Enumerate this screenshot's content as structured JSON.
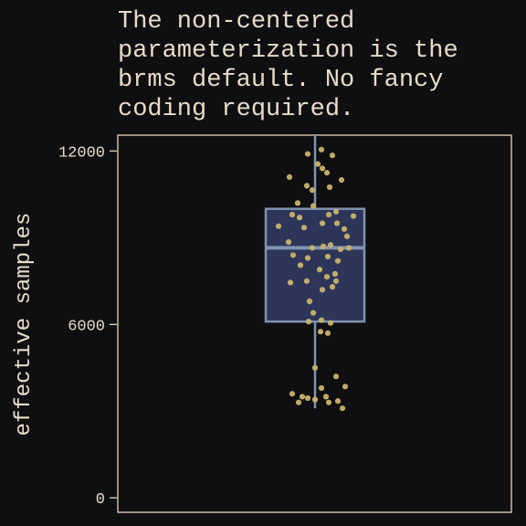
{
  "chart_data": {
    "type": "boxplot",
    "title_lines": [
      "The non-centered",
      "parameterization is the",
      "brms default. No fancy",
      "coding required."
    ],
    "xlabel": "",
    "ylabel": "effective samples",
    "ylim": [
      -500,
      12550
    ],
    "yticks": [
      0,
      6000,
      12000
    ],
    "ytick_labels": [
      "0",
      "6000",
      "12000"
    ],
    "box": {
      "q1": 6100,
      "median": 8650,
      "q3": 10000,
      "whisker_low": 3100,
      "whisker_high": 12550
    },
    "points": [
      [
        0.82,
        11900
      ],
      [
        0.93,
        11550
      ],
      [
        0.97,
        12050
      ],
      [
        1.09,
        11850
      ],
      [
        0.98,
        11400
      ],
      [
        1.03,
        11250
      ],
      [
        0.62,
        11100
      ],
      [
        0.81,
        10800
      ],
      [
        0.87,
        10650
      ],
      [
        1.06,
        10750
      ],
      [
        1.19,
        11000
      ],
      [
        0.71,
        10200
      ],
      [
        0.88,
        10100
      ],
      [
        1.05,
        9800
      ],
      [
        1.13,
        9900
      ],
      [
        1.32,
        9750
      ],
      [
        0.65,
        9800
      ],
      [
        0.73,
        9700
      ],
      [
        0.98,
        9500
      ],
      [
        0.5,
        9400
      ],
      [
        0.78,
        9350
      ],
      [
        1.14,
        9500
      ],
      [
        1.22,
        9300
      ],
      [
        1.25,
        9050
      ],
      [
        0.61,
        8850
      ],
      [
        0.87,
        8650
      ],
      [
        0.99,
        8700
      ],
      [
        1.07,
        8750
      ],
      [
        1.18,
        8600
      ],
      [
        1.27,
        8650
      ],
      [
        0.66,
        8400
      ],
      [
        0.82,
        8300
      ],
      [
        1.04,
        8350
      ],
      [
        1.15,
        8200
      ],
      [
        0.74,
        8050
      ],
      [
        0.95,
        7900
      ],
      [
        1.12,
        7750
      ],
      [
        1.03,
        7650
      ],
      [
        1.13,
        7500
      ],
      [
        0.81,
        7500
      ],
      [
        0.63,
        7450
      ],
      [
        0.98,
        7200
      ],
      [
        1.09,
        7300
      ],
      [
        0.84,
        6800
      ],
      [
        0.88,
        6400
      ],
      [
        0.83,
        6100
      ],
      [
        0.97,
        6150
      ],
      [
        1.07,
        6050
      ],
      [
        1.04,
        5700
      ],
      [
        0.96,
        5750
      ],
      [
        0.9,
        4500
      ],
      [
        1.13,
        4200
      ],
      [
        0.65,
        3600
      ],
      [
        0.76,
        3500
      ],
      [
        0.82,
        3450
      ],
      [
        0.9,
        3400
      ],
      [
        0.97,
        3800
      ],
      [
        1.02,
        3500
      ],
      [
        1.05,
        3300
      ],
      [
        1.15,
        3350
      ],
      [
        1.23,
        3850
      ],
      [
        0.72,
        3300
      ],
      [
        1.2,
        3100
      ]
    ],
    "colors": {
      "background": "#0f0f11",
      "text": "#e8dcc8",
      "box_fill": "#2d3659",
      "box_stroke": "#7f93b0",
      "point": "#c9b36c",
      "frame": "#d8c9ae"
    }
  }
}
